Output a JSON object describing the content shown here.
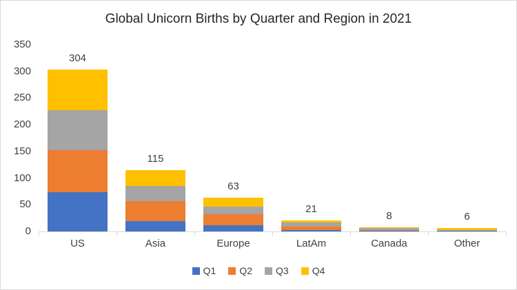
{
  "window": {
    "background": "#ffffff",
    "border_color": "#D9D9D9",
    "axis_color": "#D9D9D9",
    "text_color": "#404040"
  },
  "chart_data": {
    "type": "bar",
    "stacked": true,
    "title": "Global Unicorn Births by Quarter and Region in 2021",
    "categories": [
      "US",
      "Asia",
      "Europe",
      "LatAm",
      "Canada",
      "Other"
    ],
    "series": [
      {
        "name": "Q1",
        "color": "#4472C4",
        "values": [
          73,
          20,
          12,
          3,
          1,
          1
        ]
      },
      {
        "name": "Q2",
        "color": "#ED7D31",
        "values": [
          80,
          37,
          20,
          6,
          2,
          1
        ]
      },
      {
        "name": "Q3",
        "color": "#A5A5A5",
        "values": [
          74,
          28,
          14,
          8,
          4,
          1
        ]
      },
      {
        "name": "Q4",
        "color": "#FFC000",
        "values": [
          77,
          30,
          17,
          4,
          1,
          3
        ]
      }
    ],
    "totals": [
      304,
      115,
      63,
      21,
      8,
      6
    ],
    "xlabel": "",
    "ylabel": "",
    "y_axis": {
      "min": 0,
      "max": 350,
      "tick_step": 50,
      "ticks": [
        0,
        50,
        100,
        150,
        200,
        250,
        300,
        350
      ]
    },
    "legend": {
      "position": "bottom",
      "entries": [
        "Q1",
        "Q2",
        "Q3",
        "Q4"
      ]
    },
    "grid": false,
    "data_labels": "total-above-bar"
  }
}
